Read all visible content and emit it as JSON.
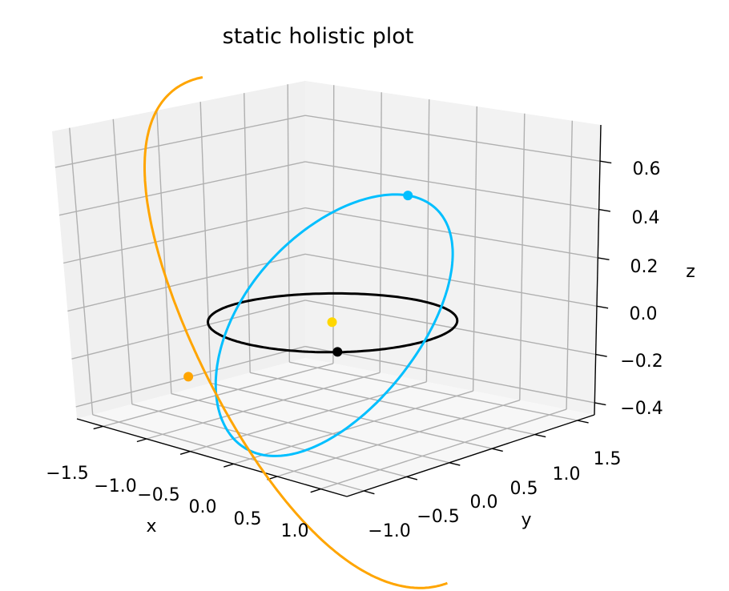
{
  "chart_data": {
    "type": "line",
    "projection": "3d",
    "title": "static holistic plot",
    "xlabel": "x",
    "ylabel": "y",
    "zlabel": "z",
    "x_ticks": [
      "−1.5",
      "−1.0",
      "−0.5",
      "0.0",
      "0.5",
      "1.0"
    ],
    "y_ticks": [
      "−1.0",
      "−0.5",
      "0.0",
      "0.5",
      "1.0",
      "1.5"
    ],
    "z_ticks": [
      "−0.4",
      "−0.2",
      "0.0",
      "0.2",
      "0.4",
      "0.6"
    ],
    "xlim": [
      -1.8,
      1.3
    ],
    "ylim": [
      -1.2,
      1.7
    ],
    "zlim": [
      -0.45,
      0.75
    ],
    "grid": true,
    "series": [
      {
        "color": "#000000",
        "path": "circle of radius 1 in the plane z = 0",
        "marker": [
          0.7,
          -0.7,
          0.0
        ]
      },
      {
        "color": "#00bfff",
        "path": "circle of radius 1 tilted about the x axis",
        "marker": [
          0.0,
          0.9,
          0.44
        ]
      },
      {
        "color": "#ffa500",
        "path": "arc of radius 1.6 tilted about the y axis",
        "marker": [
          -1.6,
          0.0,
          -0.36
        ]
      },
      {
        "color": "#ffd700",
        "path": "single point at the origin",
        "marker": [
          0.0,
          0.0,
          0.0
        ]
      }
    ]
  }
}
